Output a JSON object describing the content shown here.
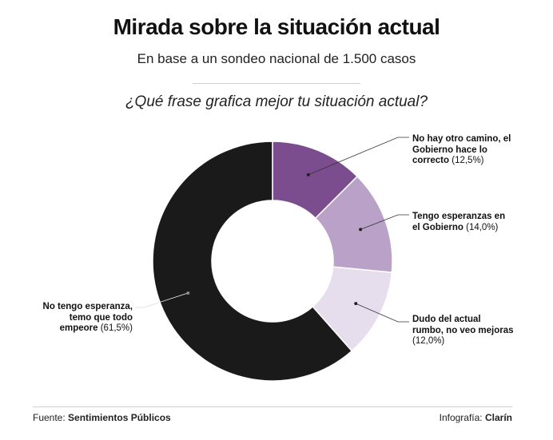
{
  "header": {
    "title": "Mirada sobre la situación actual",
    "subtitle": "En base a un sondeo nacional de 1.500 casos",
    "question": "¿Qué frase grafica mejor tu situación actual?"
  },
  "chart_data": {
    "type": "pie",
    "title": "Mirada sobre la situación actual",
    "subtitle": "En base a un sondeo nacional de 1.500 casos",
    "donut": true,
    "slices": [
      {
        "label": "No hay otro camino, el Gobierno hace lo correcto",
        "value": 12.5,
        "pct_text": "(12,5%)",
        "color": "#7b4d8e"
      },
      {
        "label": "Tengo esperanzas en el Gobierno",
        "value": 14.0,
        "pct_text": "(14,0%)",
        "color": "#b9a1c8"
      },
      {
        "label": "Dudo del actual rumbo, no veo mejoras",
        "value": 12.0,
        "pct_text": "(12,0%)",
        "color": "#e6dded"
      },
      {
        "label": "No tengo esperanza, temo que todo empeore",
        "value": 61.5,
        "pct_text": "(61,5%)",
        "color": "#1a1a1a"
      }
    ]
  },
  "labels": {
    "s0": {
      "l1": "No hay otro camino, el",
      "l2": "Gobierno hace lo",
      "l3": "correcto",
      "pct": "(12,5%)"
    },
    "s1": {
      "l1": "Tengo esperanzas en",
      "l2": "el Gobierno",
      "pct": "(14,0%)"
    },
    "s2": {
      "l1": "Dudo del actual",
      "l2": "rumbo, no veo mejoras",
      "pct": "(12,0%)"
    },
    "s3": {
      "l1": "No tengo esperanza,",
      "l2": "temo que todo",
      "l3": "empeore",
      "pct": "(61,5%)"
    }
  },
  "footer": {
    "source_prefix": "Fuente: ",
    "source_name": "Sentimientos Públicos",
    "credit_prefix": "Infografía: ",
    "credit_name": "Clarín"
  }
}
